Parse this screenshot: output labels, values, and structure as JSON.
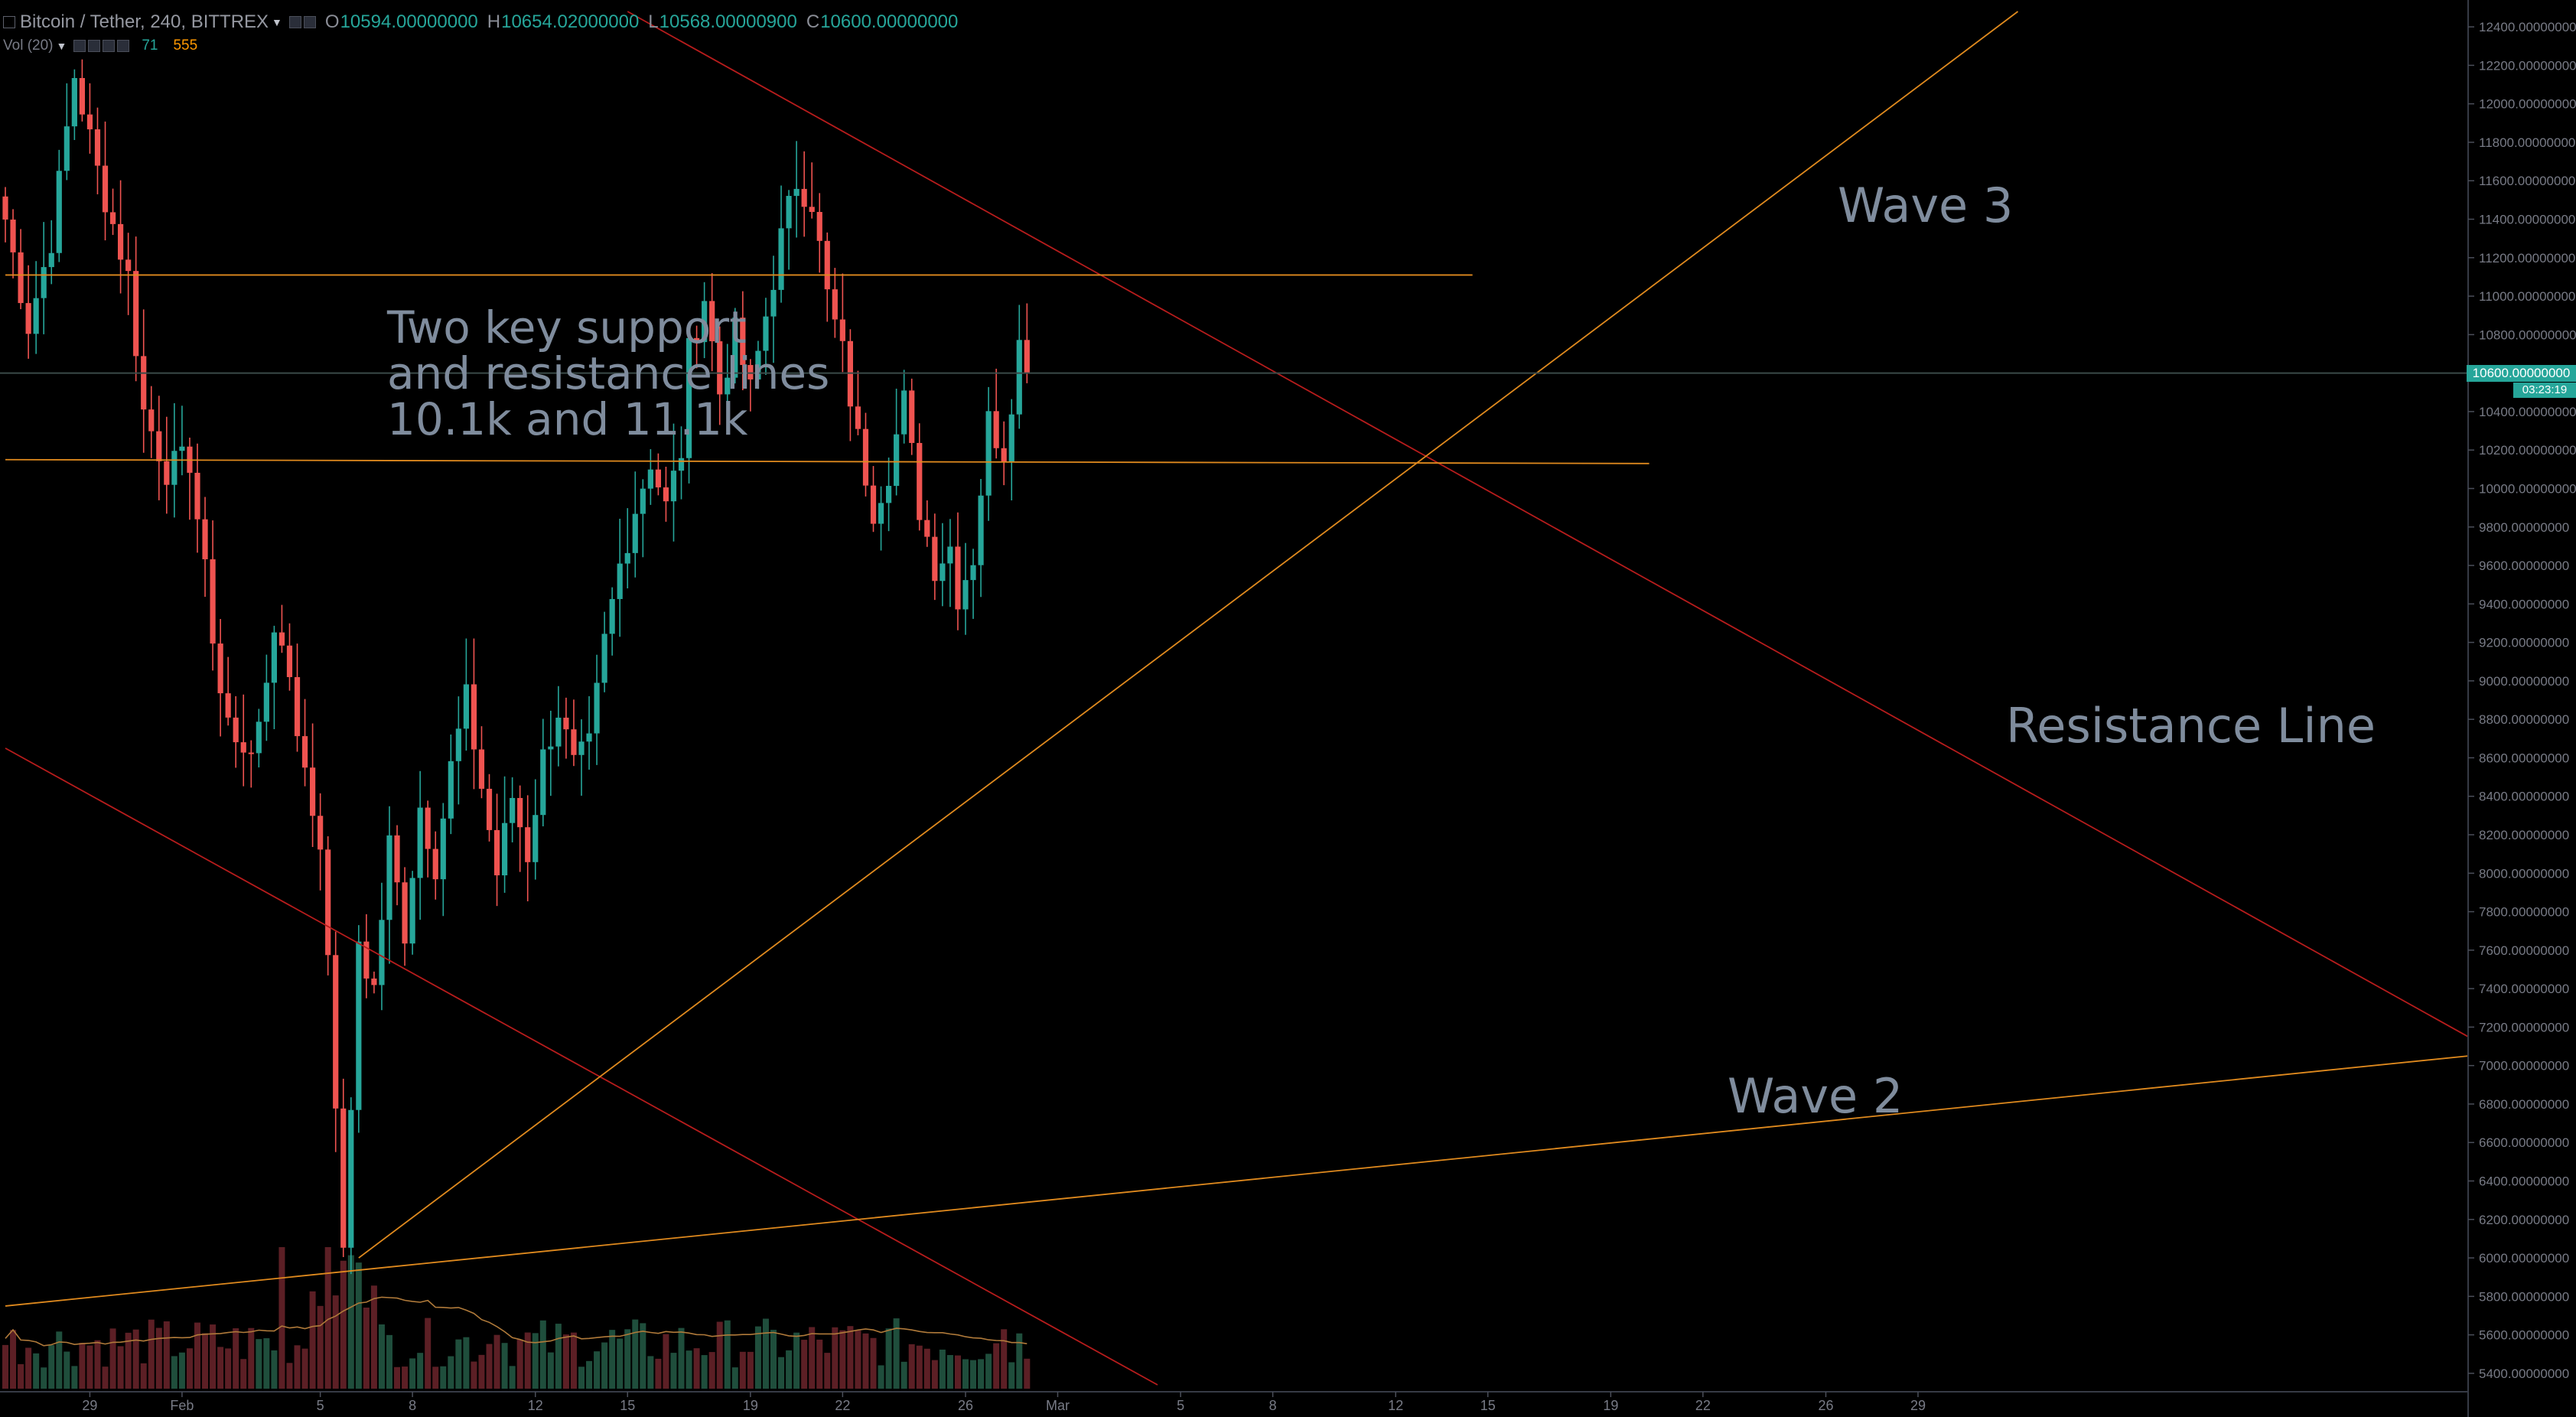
{
  "window": {
    "symbol": "Bitcoin / Tether, 240, BITTREX"
  },
  "ohlc": {
    "o_label": "O",
    "o": "10594.00000000",
    "h_label": "H",
    "h": "10654.02000000",
    "l_label": "L",
    "l": "10568.00000900",
    "c_label": "C",
    "c": "10600.00000000"
  },
  "volume_legend": {
    "label": "Vol (20)",
    "value_a": "71",
    "value_b": "555"
  },
  "annotations": {
    "wave3": "Wave 3",
    "wave2": "Wave 2",
    "resistance": "Resistance Line",
    "sr_line1": "Two key support",
    "sr_line2": "and resistance lines",
    "sr_line3": "10.1k and 11.1k"
  },
  "last_price": {
    "value": "10600.00000000",
    "countdown": "03:23:19"
  },
  "colors": {
    "background": "#000000",
    "up": "#26a69a",
    "down": "#ef5350",
    "trend_red": "#b71c1c",
    "trend_orange": "#ff9800",
    "axis_text": "#787b86",
    "annotation": "#7f8c9d"
  },
  "chart_data": {
    "type": "candlestick",
    "interval": "240",
    "y_axis": {
      "range": [
        5340,
        12480
      ],
      "ticks": [
        12400,
        12200,
        12000,
        11800,
        11600,
        11400,
        11200,
        11000,
        10800,
        10600,
        10400,
        10200,
        10000,
        9800,
        9600,
        9400,
        9200,
        9000,
        8800,
        8600,
        8400,
        8200,
        8000,
        7800,
        7600,
        7400,
        7200,
        7000,
        6800,
        6600,
        6400,
        6200,
        6000,
        5800,
        5600,
        5400
      ],
      "tick_suffix": ".00000000"
    },
    "x_axis": {
      "ticks": [
        {
          "label": "29",
          "bar": 11
        },
        {
          "label": "Feb",
          "bar": 23
        },
        {
          "label": "5",
          "bar": 41
        },
        {
          "label": "8",
          "bar": 53
        },
        {
          "label": "12",
          "bar": 69
        },
        {
          "label": "15",
          "bar": 81
        },
        {
          "label": "19",
          "bar": 97
        },
        {
          "label": "22",
          "bar": 109
        },
        {
          "label": "26",
          "bar": 125
        },
        {
          "label": "Mar",
          "bar": 137
        },
        {
          "label": "5",
          "bar": 153
        },
        {
          "label": "8",
          "bar": 165
        },
        {
          "label": "12",
          "bar": 181
        },
        {
          "label": "15",
          "bar": 193
        },
        {
          "label": "19",
          "bar": 209
        },
        {
          "label": "22",
          "bar": 221
        },
        {
          "label": "26",
          "bar": 237
        },
        {
          "label": "29",
          "bar": 249
        }
      ]
    },
    "anchors": [
      {
        "bar": 0,
        "price": 11400
      },
      {
        "bar": 3,
        "price": 10850
      },
      {
        "bar": 6,
        "price": 11300
      },
      {
        "bar": 9,
        "price": 12150
      },
      {
        "bar": 12,
        "price": 11650
      },
      {
        "bar": 16,
        "price": 11100
      },
      {
        "bar": 18,
        "price": 10400
      },
      {
        "bar": 21,
        "price": 10100
      },
      {
        "bar": 24,
        "price": 10150
      },
      {
        "bar": 26,
        "price": 9550
      },
      {
        "bar": 28,
        "price": 8950
      },
      {
        "bar": 30,
        "price": 8650
      },
      {
        "bar": 33,
        "price": 8700
      },
      {
        "bar": 35,
        "price": 9300
      },
      {
        "bar": 37,
        "price": 9050
      },
      {
        "bar": 39,
        "price": 8500
      },
      {
        "bar": 41,
        "price": 8150
      },
      {
        "bar": 42,
        "price": 7650
      },
      {
        "bar": 43,
        "price": 6700
      },
      {
        "bar": 44,
        "price": 6100
      },
      {
        "bar": 45,
        "price": 6700
      },
      {
        "bar": 46,
        "price": 7650
      },
      {
        "bar": 47,
        "price": 7500
      },
      {
        "bar": 48,
        "price": 7400
      },
      {
        "bar": 50,
        "price": 8150
      },
      {
        "bar": 52,
        "price": 7700
      },
      {
        "bar": 54,
        "price": 8350
      },
      {
        "bar": 56,
        "price": 8050
      },
      {
        "bar": 58,
        "price": 8550
      },
      {
        "bar": 60,
        "price": 8900
      },
      {
        "bar": 62,
        "price": 8450
      },
      {
        "bar": 64,
        "price": 8000
      },
      {
        "bar": 66,
        "price": 8400
      },
      {
        "bar": 68,
        "price": 8100
      },
      {
        "bar": 70,
        "price": 8600
      },
      {
        "bar": 72,
        "price": 8850
      },
      {
        "bar": 74,
        "price": 8550
      },
      {
        "bar": 76,
        "price": 8650
      },
      {
        "bar": 78,
        "price": 9200
      },
      {
        "bar": 80,
        "price": 9600
      },
      {
        "bar": 82,
        "price": 9900
      },
      {
        "bar": 84,
        "price": 10150
      },
      {
        "bar": 86,
        "price": 9900
      },
      {
        "bar": 88,
        "price": 10200
      },
      {
        "bar": 89,
        "price": 10700
      },
      {
        "bar": 91,
        "price": 11000
      },
      {
        "bar": 93,
        "price": 10500
      },
      {
        "bar": 95,
        "price": 10800
      },
      {
        "bar": 97,
        "price": 10500
      },
      {
        "bar": 99,
        "price": 10900
      },
      {
        "bar": 101,
        "price": 11300
      },
      {
        "bar": 103,
        "price": 11600
      },
      {
        "bar": 105,
        "price": 11500
      },
      {
        "bar": 107,
        "price": 11000
      },
      {
        "bar": 109,
        "price": 10700
      },
      {
        "bar": 111,
        "price": 10250
      },
      {
        "bar": 113,
        "price": 9900
      },
      {
        "bar": 115,
        "price": 10100
      },
      {
        "bar": 117,
        "price": 10450
      },
      {
        "bar": 119,
        "price": 9900
      },
      {
        "bar": 121,
        "price": 9600
      },
      {
        "bar": 123,
        "price": 9700
      },
      {
        "bar": 124,
        "price": 9450
      },
      {
        "bar": 126,
        "price": 9650
      },
      {
        "bar": 128,
        "price": 10350
      },
      {
        "bar": 130,
        "price": 10200
      },
      {
        "bar": 132,
        "price": 10750
      },
      {
        "bar": 133,
        "price": 10600
      }
    ],
    "trend_lines": [
      {
        "color": "trend_red",
        "from": {
          "bar": 81,
          "price": 12480
        },
        "to": {
          "bar": 321,
          "price": 7150
        }
      },
      {
        "color": "trend_red",
        "from": {
          "bar": 0,
          "price": 8650
        },
        "to": {
          "bar": 150,
          "price": 5340
        }
      },
      {
        "color": "trend_orange",
        "from": {
          "bar": 46,
          "price": 6000
        },
        "to": {
          "bar": 262,
          "price": 12480
        }
      },
      {
        "color": "trend_orange",
        "from": {
          "bar": 0,
          "price": 5750
        },
        "to": {
          "bar": 321,
          "price": 7050
        }
      },
      {
        "color": "trend_orange",
        "from": {
          "bar": 0,
          "price": 11110
        },
        "to": {
          "bar": 191,
          "price": 11110
        }
      },
      {
        "color": "trend_orange",
        "from": {
          "bar": 0,
          "price": 10150
        },
        "to": {
          "bar": 214,
          "price": 10130
        }
      }
    ]
  }
}
